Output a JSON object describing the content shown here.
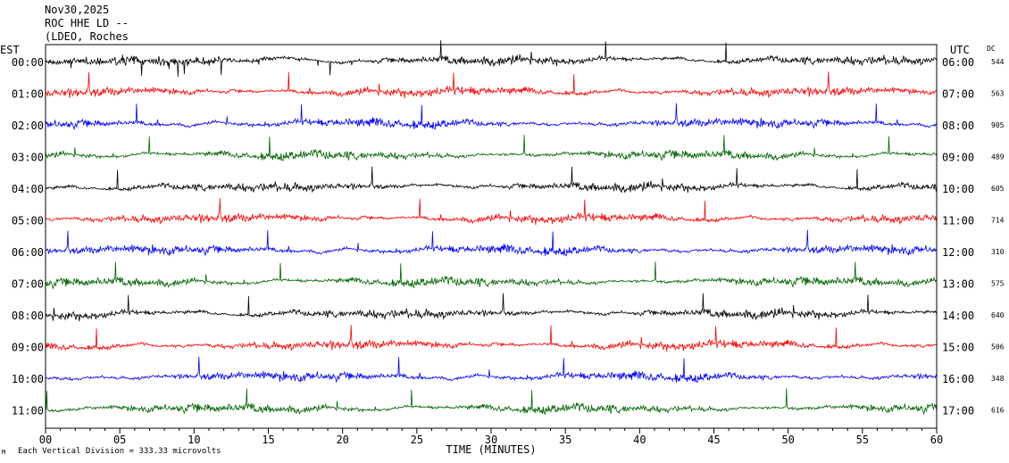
{
  "header": {
    "date": "Nov30,2025",
    "station": "ROC HHE LD --",
    "network": "(LDEO, Roches"
  },
  "footer": {
    "mark": "M",
    "scale_label": "Each Vertical Division = 333.33 microvolts"
  },
  "chart_data": {
    "type": "line",
    "title": "",
    "xlabel": "TIME (MINUTES)",
    "xlim": [
      0,
      60
    ],
    "xticks": [
      0,
      5,
      10,
      15,
      20,
      25,
      30,
      35,
      40,
      45,
      50,
      55,
      60
    ],
    "xtick_labels": [
      "00",
      "05",
      "10",
      "15",
      "20",
      "25",
      "30",
      "35",
      "40",
      "45",
      "50",
      "55",
      "60"
    ],
    "left_axis_label": "EST",
    "right_axis_label": "UTC",
    "dc_label": "DC",
    "colors": [
      "#000000",
      "#ff0000",
      "#0000ff",
      "#006400"
    ],
    "rows": [
      {
        "est": "00:00",
        "utc": "06:00",
        "dc": "544"
      },
      {
        "est": "01:00",
        "utc": "07:00",
        "dc": "563"
      },
      {
        "est": "02:00",
        "utc": "08:00",
        "dc": "905"
      },
      {
        "est": "03:00",
        "utc": "09:00",
        "dc": "489"
      },
      {
        "est": "04:00",
        "utc": "10:00",
        "dc": "605"
      },
      {
        "est": "05:00",
        "utc": "11:00",
        "dc": "714"
      },
      {
        "est": "06:00",
        "utc": "12:00",
        "dc": "310"
      },
      {
        "est": "07:00",
        "utc": "13:00",
        "dc": "575"
      },
      {
        "est": "08:00",
        "utc": "14:00",
        "dc": "640"
      },
      {
        "est": "09:00",
        "utc": "15:00",
        "dc": "506"
      },
      {
        "est": "10:00",
        "utc": "16:00",
        "dc": "348"
      },
      {
        "est": "11:00",
        "utc": "17:00",
        "dc": "616"
      }
    ],
    "grid": false
  }
}
